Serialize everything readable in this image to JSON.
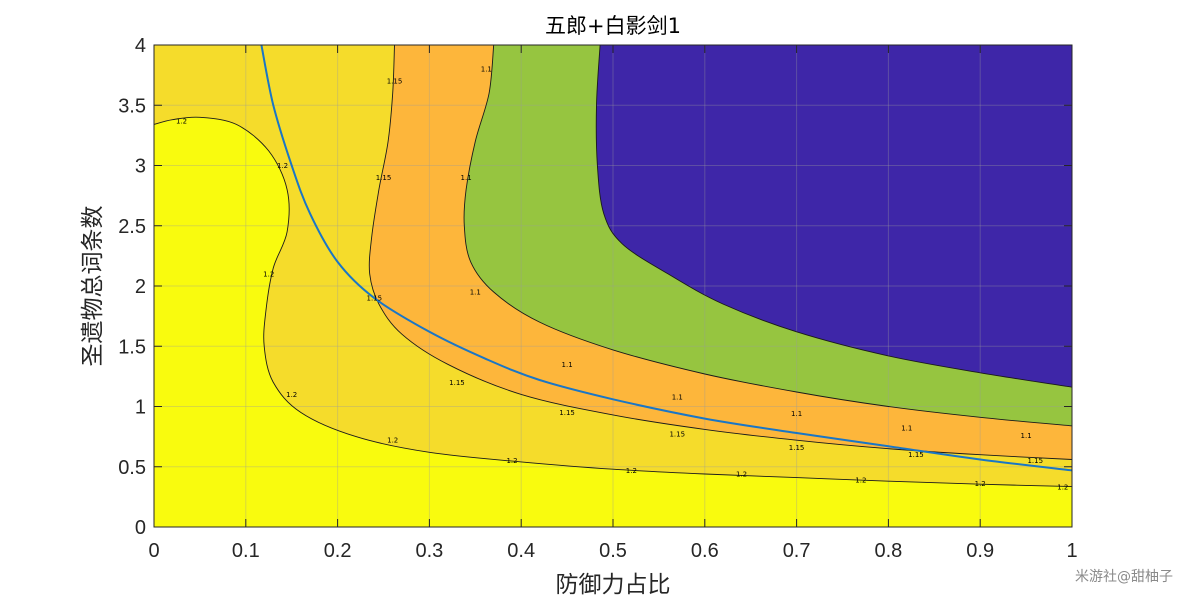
{
  "chart_data": {
    "type": "contour",
    "title": "五郎+白影剑1",
    "xlabel": "防御力占比",
    "ylabel": "圣遗物总词条数",
    "xlim": [
      0,
      1
    ],
    "ylim": [
      0,
      4
    ],
    "xticks": [
      0,
      0.1,
      0.2,
      0.3,
      0.4,
      0.5,
      0.6,
      0.7,
      0.8,
      0.9,
      1
    ],
    "xtick_labels": [
      "0",
      "0.1",
      "0.2",
      "0.3",
      "0.4",
      "0.5",
      "0.6",
      "0.7",
      "0.8",
      "0.9",
      "1"
    ],
    "yticks": [
      0,
      0.5,
      1,
      1.5,
      2,
      2.5,
      3,
      3.5,
      4
    ],
    "ytick_labels": [
      "0",
      "0.5",
      "1",
      "1.5",
      "2",
      "2.5",
      "3",
      "3.5",
      "4"
    ],
    "grid": true,
    "contour_levels": [
      1.1,
      1.15,
      1.2
    ],
    "contour_level_labels": [
      "1.1",
      "1.15",
      "1.2"
    ],
    "region_colors": {
      "below_1.1": "#3e26a8",
      "1.1_to_1.15": "#96c540",
      "1.15_to_1.2": "#fdb63b",
      "near_1.2": "#f5dc2b",
      "above_1.2": "#f9fb0e"
    },
    "contours": {
      "inner_dark": [
        [
          0.486,
          4.0
        ],
        [
          0.482,
          3.5
        ],
        [
          0.483,
          3.0
        ],
        [
          0.49,
          2.6
        ],
        [
          0.51,
          2.35
        ],
        [
          0.56,
          2.1
        ],
        [
          0.62,
          1.85
        ],
        [
          0.7,
          1.62
        ],
        [
          0.8,
          1.42
        ],
        [
          0.9,
          1.28
        ],
        [
          1.0,
          1.16
        ]
      ],
      "level_1.1": [
        [
          0.37,
          4.0
        ],
        [
          0.365,
          3.6
        ],
        [
          0.35,
          3.2
        ],
        [
          0.34,
          2.8
        ],
        [
          0.338,
          2.5
        ],
        [
          0.345,
          2.2
        ],
        [
          0.37,
          1.95
        ],
        [
          0.42,
          1.7
        ],
        [
          0.5,
          1.47
        ],
        [
          0.6,
          1.27
        ],
        [
          0.7,
          1.12
        ],
        [
          0.8,
          1.0
        ],
        [
          0.9,
          0.91
        ],
        [
          1.0,
          0.84
        ]
      ],
      "level_1.15": [
        [
          0.262,
          4.0
        ],
        [
          0.26,
          3.6
        ],
        [
          0.255,
          3.2
        ],
        [
          0.245,
          2.8
        ],
        [
          0.237,
          2.4
        ],
        [
          0.235,
          2.1
        ],
        [
          0.245,
          1.85
        ],
        [
          0.27,
          1.6
        ],
        [
          0.32,
          1.35
        ],
        [
          0.4,
          1.1
        ],
        [
          0.5,
          0.93
        ],
        [
          0.6,
          0.81
        ],
        [
          0.7,
          0.72
        ],
        [
          0.8,
          0.65
        ],
        [
          0.9,
          0.6
        ],
        [
          1.0,
          0.56
        ]
      ],
      "level_1.2_upper": [
        [
          0.0,
          3.34
        ],
        [
          0.02,
          3.38
        ],
        [
          0.05,
          3.4
        ],
        [
          0.09,
          3.34
        ],
        [
          0.125,
          3.12
        ],
        [
          0.145,
          2.8
        ],
        [
          0.145,
          2.45
        ],
        [
          0.13,
          2.15
        ],
        [
          0.122,
          1.8
        ],
        [
          0.12,
          1.5
        ],
        [
          0.13,
          1.2
        ],
        [
          0.16,
          0.95
        ],
        [
          0.22,
          0.75
        ],
        [
          0.3,
          0.62
        ],
        [
          0.4,
          0.54
        ],
        [
          0.5,
          0.48
        ],
        [
          0.6,
          0.44
        ],
        [
          0.7,
          0.41
        ],
        [
          0.8,
          0.38
        ],
        [
          0.9,
          0.355
        ],
        [
          1.0,
          0.335
        ]
      ],
      "blue_curve": [
        [
          0.117,
          4.0
        ],
        [
          0.13,
          3.5
        ],
        [
          0.15,
          3.0
        ],
        [
          0.17,
          2.6
        ],
        [
          0.2,
          2.2
        ],
        [
          0.24,
          1.9
        ],
        [
          0.3,
          1.62
        ],
        [
          0.36,
          1.4
        ],
        [
          0.42,
          1.22
        ],
        [
          0.5,
          1.06
        ],
        [
          0.6,
          0.9
        ],
        [
          0.7,
          0.78
        ],
        [
          0.8,
          0.67
        ],
        [
          0.9,
          0.56
        ],
        [
          1.0,
          0.47
        ]
      ]
    },
    "contour_text_labels": [
      {
        "text": "1.15",
        "x": 0.262,
        "y": 3.7
      },
      {
        "text": "1.1",
        "x": 0.362,
        "y": 3.8
      },
      {
        "text": "1.2",
        "x": 0.03,
        "y": 3.37
      },
      {
        "text": "1.2",
        "x": 0.14,
        "y": 3.0
      },
      {
        "text": "1.15",
        "x": 0.25,
        "y": 2.9
      },
      {
        "text": "1.1",
        "x": 0.34,
        "y": 2.9
      },
      {
        "text": "1.2",
        "x": 0.125,
        "y": 2.1
      },
      {
        "text": "1.15",
        "x": 0.24,
        "y": 1.9
      },
      {
        "text": "1.1",
        "x": 0.35,
        "y": 1.95
      },
      {
        "text": "1.2",
        "x": 0.15,
        "y": 1.1
      },
      {
        "text": "1.15",
        "x": 0.33,
        "y": 1.2
      },
      {
        "text": "1.1",
        "x": 0.45,
        "y": 1.35
      },
      {
        "text": "1.2",
        "x": 0.26,
        "y": 0.72
      },
      {
        "text": "1.15",
        "x": 0.45,
        "y": 0.95
      },
      {
        "text": "1.1",
        "x": 0.57,
        "y": 1.08
      },
      {
        "text": "1.2",
        "x": 0.39,
        "y": 0.55
      },
      {
        "text": "1.15",
        "x": 0.57,
        "y": 0.77
      },
      {
        "text": "1.1",
        "x": 0.7,
        "y": 0.94
      },
      {
        "text": "1.2",
        "x": 0.52,
        "y": 0.47
      },
      {
        "text": "1.15",
        "x": 0.7,
        "y": 0.66
      },
      {
        "text": "1.1",
        "x": 0.82,
        "y": 0.82
      },
      {
        "text": "1.2",
        "x": 0.64,
        "y": 0.44
      },
      {
        "text": "1.15",
        "x": 0.83,
        "y": 0.6
      },
      {
        "text": "1.1",
        "x": 0.95,
        "y": 0.76
      },
      {
        "text": "1.2",
        "x": 0.77,
        "y": 0.39
      },
      {
        "text": "1.15",
        "x": 0.96,
        "y": 0.55
      },
      {
        "text": "1.2",
        "x": 0.9,
        "y": 0.36
      },
      {
        "text": "1.2",
        "x": 0.99,
        "y": 0.33
      }
    ]
  },
  "watermark": "米游社@甜柚子"
}
